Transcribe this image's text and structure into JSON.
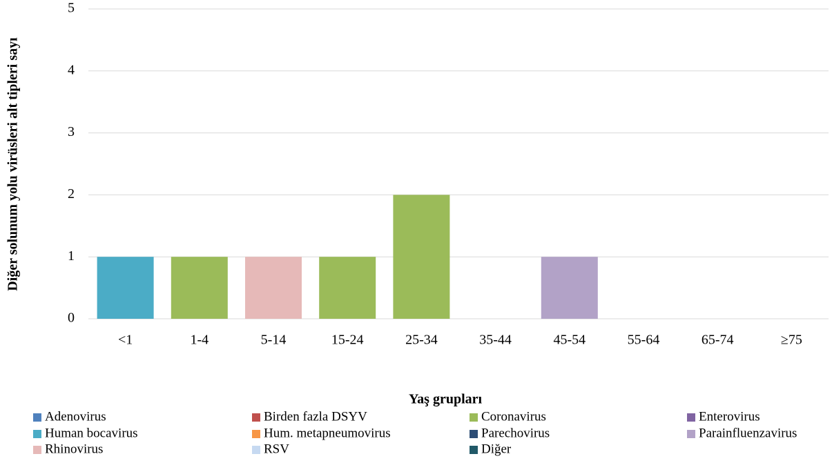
{
  "chart_data": {
    "type": "stacked-bar",
    "x_label": "Yaş grupları",
    "y_label": "Diğer solunum yolu virüsleri alt tipleri sayı",
    "categories": [
      "<1",
      "1-4",
      "5-14",
      "15-24",
      "25-34",
      "35-44",
      "45-54",
      "55-64",
      "65-74",
      "≥75"
    ],
    "ylim": [
      0,
      5
    ],
    "yticks": [
      0,
      1,
      2,
      3,
      4,
      5
    ],
    "grid": true,
    "legend": "bottom",
    "series": [
      {
        "name": "Adenovirus",
        "color": "#4f81bd",
        "values": [
          0,
          0,
          0,
          0,
          0,
          0,
          0,
          0,
          0,
          0
        ]
      },
      {
        "name": "Birden fazla DSYV",
        "color": "#c0504d",
        "values": [
          0,
          0,
          0,
          0,
          0,
          0,
          0,
          0,
          0,
          0
        ]
      },
      {
        "name": "Coronavirus",
        "color": "#9bbb59",
        "values": [
          0,
          1,
          0,
          1,
          2,
          0,
          0,
          0,
          0,
          0
        ]
      },
      {
        "name": "Enterovirus",
        "color": "#8064a2",
        "values": [
          0,
          0,
          0,
          0,
          0,
          0,
          0,
          0,
          0,
          0
        ]
      },
      {
        "name": "Human bocavirus",
        "color": "#4bacc6",
        "values": [
          1,
          0,
          0,
          0,
          0,
          0,
          0,
          0,
          0,
          0
        ]
      },
      {
        "name": "Hum. metapneumovirus",
        "color": "#f79646",
        "values": [
          0,
          0,
          0,
          0,
          0,
          0,
          0,
          0,
          0,
          0
        ]
      },
      {
        "name": "Parechovirus",
        "color": "#2c4d75",
        "values": [
          0,
          0,
          0,
          0,
          0,
          0,
          0,
          0,
          0,
          0
        ]
      },
      {
        "name": "Parainfluenzavirus",
        "color": "#b2a2c7",
        "values": [
          0,
          0,
          0,
          0,
          0,
          0,
          1,
          0,
          0,
          0
        ]
      },
      {
        "name": "Rhinovirus",
        "color": "#e6b9b8",
        "values": [
          0,
          0,
          1,
          0,
          0,
          0,
          0,
          0,
          0,
          0
        ]
      },
      {
        "name": "RSV",
        "color": "#c6d9f1",
        "values": [
          0,
          0,
          0,
          0,
          0,
          0,
          0,
          0,
          0,
          0
        ]
      },
      {
        "name": "Diğer",
        "color": "#215968",
        "values": [
          0,
          0,
          0,
          0,
          0,
          0,
          0,
          0,
          0,
          0
        ]
      }
    ]
  }
}
